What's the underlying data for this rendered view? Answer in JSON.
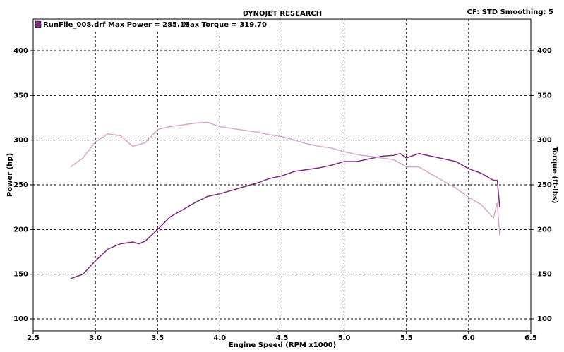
{
  "chart_data": {
    "type": "line",
    "title": "DYNOJET RESEARCH",
    "subtitle": "CF: STD  Smoothing: 5",
    "annotations": [
      "RunFile_008.drf Max Power = 285.13",
      "Max Torque = 319.70"
    ],
    "xlabel": "Engine Speed (RPM x1000)",
    "ylabel": "Power (hp)",
    "y2label": "Torque (ft-lbs)",
    "xlim": [
      2.5,
      6.5
    ],
    "xticks": [
      2.5,
      {
        "value": 3,
        "label": "3.0"
      },
      3.5,
      {
        "value": 4,
        "label": "4.0"
      },
      4.5,
      {
        "value": 5,
        "label": "5.0"
      },
      5.5,
      {
        "value": 6,
        "label": "6.0"
      },
      6.5
    ],
    "ylim": [
      86.6,
      435.5
    ],
    "yticks": [
      100,
      150,
      200,
      250,
      300,
      350,
      400
    ],
    "y2lim": [
      86.6,
      435.5
    ],
    "y2ticks": [
      100,
      150,
      200,
      250,
      300,
      350,
      400
    ],
    "grid": true,
    "series": [
      {
        "color": "#7b2c7e",
        "axis": "y",
        "x": [
          2.8,
          2.9,
          3.0,
          3.1,
          3.2,
          3.3,
          3.35,
          3.4,
          3.5,
          3.6,
          3.7,
          3.8,
          3.9,
          4.0,
          4.1,
          4.2,
          4.3,
          4.4,
          4.5,
          4.6,
          4.7,
          4.8,
          4.9,
          5.0,
          5.1,
          5.2,
          5.3,
          5.4,
          5.45,
          5.5,
          5.6,
          5.7,
          5.8,
          5.9,
          6.0,
          6.1,
          6.2,
          6.23,
          6.25
        ],
        "values": [
          145,
          150,
          165,
          178,
          184,
          186,
          184,
          187,
          200,
          214,
          222,
          230,
          237,
          240,
          244,
          248,
          252,
          257,
          260,
          265,
          267,
          269,
          272,
          276,
          276,
          279,
          282,
          283,
          285,
          280,
          285,
          282,
          279,
          276,
          268,
          263,
          255,
          255,
          225
        ]
      },
      {
        "color": "#d9a6cf",
        "axis": "y2",
        "x": [
          2.8,
          2.9,
          3.0,
          3.1,
          3.2,
          3.3,
          3.4,
          3.5,
          3.6,
          3.7,
          3.8,
          3.9,
          4.0,
          4.1,
          4.2,
          4.3,
          4.4,
          4.5,
          4.6,
          4.7,
          4.8,
          4.9,
          5.0,
          5.1,
          5.2,
          5.3,
          5.4,
          5.5,
          5.6,
          5.7,
          5.8,
          5.9,
          6.0,
          6.1,
          6.2,
          6.23,
          6.25
        ],
        "values": [
          270,
          280,
          298,
          307,
          305,
          293,
          297,
          312,
          315,
          317,
          319,
          320,
          315,
          313,
          311,
          309,
          306,
          304,
          300,
          296,
          293,
          291,
          287,
          284,
          282,
          280,
          278,
          270,
          270,
          262,
          254,
          246,
          236,
          228,
          213,
          230,
          193
        ]
      }
    ]
  }
}
